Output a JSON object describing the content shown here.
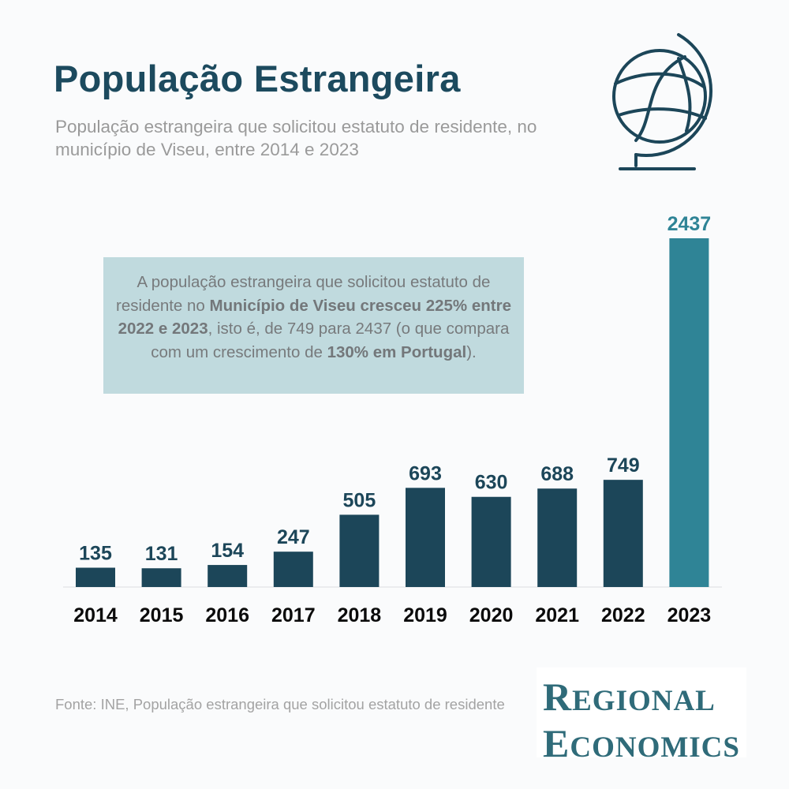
{
  "header": {
    "title": "População Estrangeira",
    "subtitle": "População estrangeira que solicitou estatuto de residente, no município de Viseu, entre 2014 e 2023"
  },
  "callout": {
    "part1": "A população estrangeira que solicitou estatuto de residente no ",
    "bold1": "Município de Viseu cresceu 225% entre 2022 e 2023",
    "part2": ", isto é, de 749 para 2437 (o que compara com um crescimento de ",
    "bold2": "130% em Portugal",
    "part3": ")."
  },
  "source": "Fonte: INE, População estrangeira que solicitou estatuto de residente",
  "logo": {
    "line1_initial": "R",
    "line1_rest": "EGIONAL",
    "line2_initial": "E",
    "line2_rest": "CONOMICS"
  },
  "icons": {
    "globe": "globe-icon"
  },
  "colors": {
    "title": "#1c4a5e",
    "bar": "#1c4659",
    "bar_highlight": "#2f8496",
    "callout_bg": "#c0dade",
    "logo": "#2f6b79"
  },
  "chart_data": {
    "type": "bar",
    "title": "",
    "xlabel": "",
    "ylabel": "",
    "categories": [
      "2014",
      "2015",
      "2016",
      "2017",
      "2018",
      "2019",
      "2020",
      "2021",
      "2022",
      "2023"
    ],
    "values": [
      135,
      131,
      154,
      247,
      505,
      693,
      630,
      688,
      749,
      2437
    ],
    "data_labels": [
      "135",
      "131",
      "154",
      "247",
      "505",
      "693",
      "630",
      "688",
      "749",
      "2437"
    ],
    "highlight_category": "2023",
    "ylim": [
      0,
      2437
    ],
    "grid": false,
    "legend": "none"
  }
}
